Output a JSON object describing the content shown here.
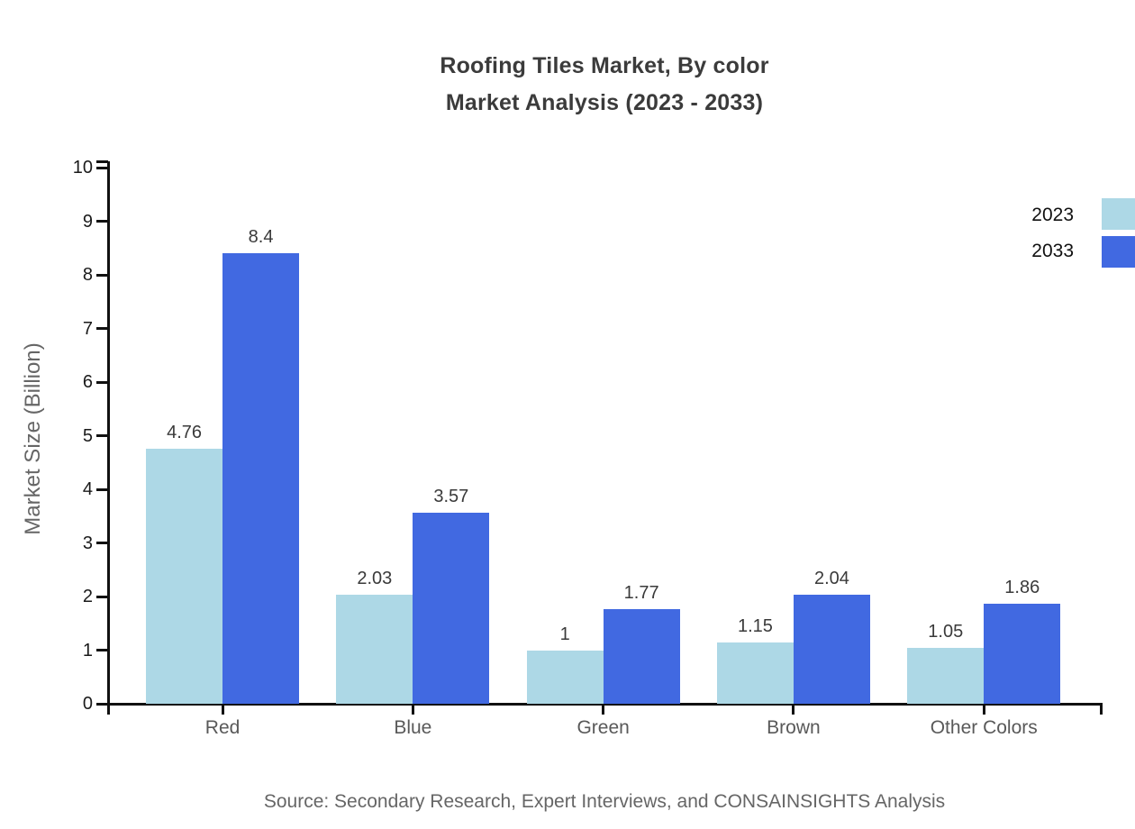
{
  "page": {
    "background": "#ffffff"
  },
  "header": {
    "title_line1": "Roofing Tiles Market, By color",
    "title_line2": "Market Analysis (2023 - 2033)"
  },
  "footer": {
    "source": "Source: Secondary Research, Expert Interviews, and CONSAINSIGHTS Analysis"
  },
  "chart_data": {
    "type": "bar",
    "title": "Roofing Tiles Market, By color Market Analysis (2023 - 2033)",
    "title_lines": [
      "Roofing Tiles Market, By color",
      "Market Analysis (2023 - 2033)"
    ],
    "categories": [
      "Red",
      "Blue",
      "Green",
      "Brown",
      "Other Colors"
    ],
    "series": [
      {
        "name": "2023",
        "color": "#ADD8E6",
        "values": [
          4.76,
          2.03,
          1,
          1.15,
          1.05
        ]
      },
      {
        "name": "2033",
        "color": "#4169E1",
        "values": [
          8.4,
          3.57,
          1.77,
          2.04,
          1.86
        ]
      }
    ],
    "value_labels": [
      [
        "4.76",
        "2.03",
        "1",
        "1.15",
        "1.05"
      ],
      [
        "8.4",
        "3.57",
        "1.77",
        "2.04",
        "1.86"
      ]
    ],
    "xlabel": "",
    "ylabel": "Market Size (Billion)",
    "ylim": [
      0,
      10
    ],
    "yticks": [
      0,
      1,
      2,
      3,
      4,
      5,
      6,
      7,
      8,
      9,
      10
    ],
    "grid": false,
    "legend": {
      "position": "top-right",
      "entries": [
        "2023",
        "2033"
      ]
    },
    "colors": {
      "axis": "#111111",
      "title_text": "#3b3b3b",
      "tick_label": "#1a1a1a",
      "category_label": "#595959",
      "value_label": "#3a3a3a",
      "axis_title": "#666666",
      "source_text": "#666666",
      "background": "#ffffff"
    }
  }
}
